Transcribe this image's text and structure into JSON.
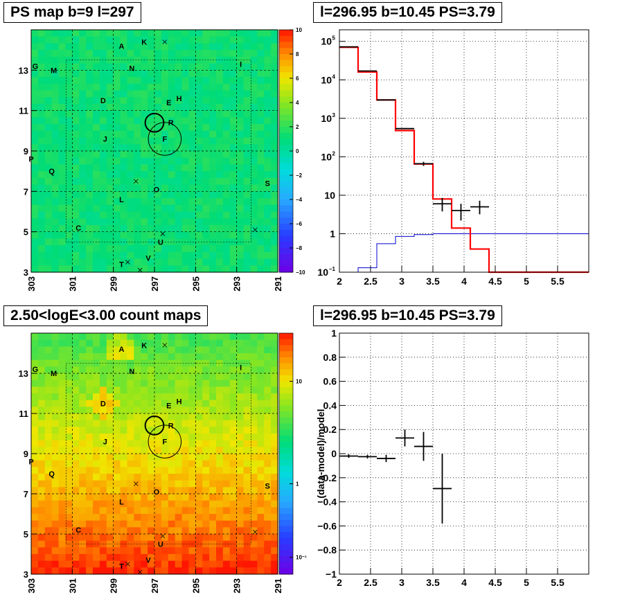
{
  "colors": {
    "data": "#000000",
    "model": "#ff0000",
    "background": "#0000cc"
  },
  "chart_data": [
    {
      "type": "heatmap",
      "title": "PS map b=9 l=297",
      "x_ticks": [
        "303",
        "301",
        "299",
        "297",
        "295",
        "293",
        "291"
      ],
      "y_ticks": [
        "3",
        "5",
        "7",
        "9",
        "11",
        "13"
      ],
      "xlim": [
        303,
        291
      ],
      "ylim": [
        3,
        15
      ],
      "colorbar_ticks": [
        "10",
        "8",
        "6",
        "4",
        "2",
        "0",
        "−2",
        "−4",
        "−6",
        "−8",
        "−10"
      ],
      "colorbar_range": [
        -10,
        10
      ],
      "sources": [
        {
          "label": "A",
          "l": 298.6,
          "b": 14.2
        },
        {
          "label": "K",
          "l": 297.5,
          "b": 14.4
        },
        {
          "label": "G",
          "l": 302.8,
          "b": 13.2
        },
        {
          "label": "M",
          "l": 301.9,
          "b": 13.0
        },
        {
          "label": "N",
          "l": 298.1,
          "b": 13.1
        },
        {
          "label": "I",
          "l": 292.8,
          "b": 13.3
        },
        {
          "label": "D",
          "l": 299.5,
          "b": 11.5
        },
        {
          "label": "E",
          "l": 296.3,
          "b": 11.4
        },
        {
          "label": "H",
          "l": 295.8,
          "b": 11.6
        },
        {
          "label": "R",
          "l": 296.2,
          "b": 10.4
        },
        {
          "label": "F",
          "l": 296.5,
          "b": 9.6
        },
        {
          "label": "J",
          "l": 299.4,
          "b": 9.6
        },
        {
          "label": "P",
          "l": 303.0,
          "b": 8.6
        },
        {
          "label": "Q",
          "l": 302.0,
          "b": 8.0
        },
        {
          "label": "S",
          "l": 291.5,
          "b": 7.4
        },
        {
          "label": "O",
          "l": 296.9,
          "b": 7.1
        },
        {
          "label": "L",
          "l": 298.6,
          "b": 6.6
        },
        {
          "label": "C",
          "l": 300.7,
          "b": 5.2
        },
        {
          "label": "U",
          "l": 296.7,
          "b": 4.5
        },
        {
          "label": "V",
          "l": 297.3,
          "b": 3.7
        },
        {
          "label": "T",
          "l": 298.6,
          "b": 3.4
        }
      ],
      "markers": [
        {
          "l": 296.5,
          "b": 14.4
        },
        {
          "l": 297.9,
          "b": 7.5
        },
        {
          "l": 296.6,
          "b": 4.9
        },
        {
          "l": 292.1,
          "b": 5.1
        },
        {
          "l": 298.3,
          "b": 3.5
        },
        {
          "l": 297.7,
          "b": 3.1
        }
      ],
      "circles": [
        {
          "l": 297.0,
          "b": 10.4,
          "r": 0.45
        },
        {
          "l": 296.5,
          "b": 9.6,
          "r": 0.8
        }
      ]
    },
    {
      "type": "line",
      "title": "l=296.95 b=10.45 PS=3.79",
      "xlabel": "",
      "ylabel": "",
      "xlim": [
        2,
        6
      ],
      "ylim": [
        0.1,
        200000
      ],
      "yscale": "log",
      "x_ticks": [
        "2",
        "2.5",
        "3",
        "3.5",
        "4",
        "4.5",
        "5",
        "5.5"
      ],
      "grid": true,
      "bin_edges": [
        2,
        2.3,
        2.6,
        2.9,
        3.2,
        3.5,
        3.8,
        4.1,
        4.4,
        4.7,
        5.0,
        5.3,
        5.6,
        6.0
      ],
      "model": [
        70000,
        16000,
        3000,
        480,
        65,
        8,
        1.4,
        0.4,
        0.1,
        0.1,
        0.1,
        0.1,
        0.1
      ],
      "background": [
        0.1,
        0.13,
        0.55,
        0.85,
        0.95,
        1.0,
        1.0,
        1.0,
        1.0,
        1.0,
        1.0,
        1.0,
        1.0
      ],
      "data_points": [
        {
          "x": 2.15,
          "y": 72000,
          "xerr": 0.15,
          "ylo": 71000,
          "yhi": 73000
        },
        {
          "x": 2.45,
          "y": 17000,
          "xerr": 0.15,
          "ylo": 16800,
          "yhi": 17200
        },
        {
          "x": 2.75,
          "y": 3000,
          "xerr": 0.15,
          "ylo": 2950,
          "yhi": 3050
        },
        {
          "x": 3.05,
          "y": 540,
          "xerr": 0.15,
          "ylo": 520,
          "yhi": 560
        },
        {
          "x": 3.35,
          "y": 66,
          "xerr": 0.15,
          "ylo": 58,
          "yhi": 74
        },
        {
          "x": 3.65,
          "y": 6,
          "xerr": 0.15,
          "ylo": 3.8,
          "yhi": 8.5
        },
        {
          "x": 3.95,
          "y": 4,
          "xerr": 0.15,
          "ylo": 2.2,
          "yhi": 6
        },
        {
          "x": 4.25,
          "y": 5,
          "xerr": 0.15,
          "ylo": 3.2,
          "yhi": 7.2
        }
      ]
    },
    {
      "type": "heatmap",
      "title": "2.50<logE<3.00 count maps",
      "x_ticks": [
        "303",
        "301",
        "299",
        "297",
        "295",
        "293",
        "291"
      ],
      "y_ticks": [
        "3",
        "5",
        "7",
        "9",
        "11",
        "13"
      ],
      "xlim": [
        303,
        291
      ],
      "ylim": [
        3,
        15
      ],
      "colorbar_ticks": [
        "10",
        "1",
        "10⁻¹"
      ],
      "colorbar_scale": "log"
    },
    {
      "type": "scatter",
      "title": "l=296.95 b=10.45 PS=3.79",
      "ylabel": "(data-model)/model",
      "xlim": [
        2,
        6
      ],
      "ylim": [
        -1,
        1
      ],
      "grid": true,
      "x_ticks": [
        "2",
        "2.5",
        "3",
        "3.5",
        "4",
        "4.5",
        "5",
        "5.5"
      ],
      "y_ticks": [
        "1",
        "0.8",
        "0.6",
        "0.4",
        "0.2",
        "0",
        "−0.2",
        "−0.4",
        "−0.6",
        "−0.8",
        "−1"
      ],
      "points": [
        {
          "x": 2.15,
          "y": -0.02,
          "xerr": 0.15,
          "yerr": 0.015
        },
        {
          "x": 2.45,
          "y": -0.025,
          "xerr": 0.15,
          "yerr": 0.015
        },
        {
          "x": 2.75,
          "y": -0.04,
          "xerr": 0.15,
          "yerr": 0.03
        },
        {
          "x": 3.05,
          "y": 0.13,
          "xerr": 0.15,
          "yerr": 0.07
        },
        {
          "x": 3.35,
          "y": 0.06,
          "xerr": 0.15,
          "yerr": 0.12
        },
        {
          "x": 3.65,
          "y": -0.29,
          "xerr": 0.15,
          "yerr": 0.29
        }
      ]
    }
  ]
}
